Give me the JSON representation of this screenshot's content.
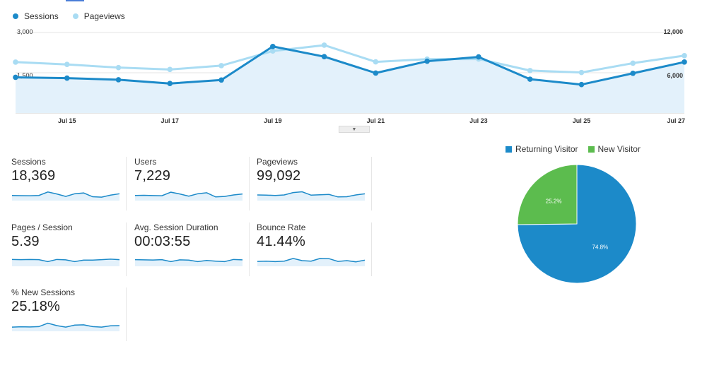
{
  "legend": {
    "sessions": {
      "label": "Sessions",
      "color": "#1c8ac9",
      "icon": "circle-marker-icon"
    },
    "pageviews": {
      "label": "Pageviews",
      "color": "#a9dcf3",
      "icon": "circle-marker-icon"
    }
  },
  "chart_data": [
    {
      "type": "line",
      "x": [
        "Jul 14",
        "Jul 15",
        "Jul 16",
        "Jul 17",
        "Jul 18",
        "Jul 19",
        "Jul 20",
        "Jul 21",
        "Jul 22",
        "Jul 23",
        "Jul 24",
        "Jul 25",
        "Jul 26",
        "Jul 27"
      ],
      "x_tick_labels": [
        "Jul 15",
        "Jul 17",
        "Jul 19",
        "Jul 21",
        "Jul 23",
        "Jul 25",
        "Jul 27"
      ],
      "series": [
        {
          "name": "Sessions",
          "axis": "left",
          "color": "#1c8ac9",
          "values": [
            1330,
            1300,
            1240,
            1100,
            1230,
            2480,
            2100,
            1490,
            1930,
            2090,
            1260,
            1060,
            1480,
            1900
          ]
        },
        {
          "name": "Pageviews",
          "axis": "right",
          "color": "#a9dcf3",
          "values": [
            7590,
            7240,
            6770,
            6490,
            7060,
            9240,
            10110,
            7620,
            8030,
            8050,
            6330,
            6040,
            7430,
            8550
          ]
        }
      ],
      "y_left": {
        "ticks": [
          "3,000",
          "1,500"
        ],
        "range": [
          0,
          3000
        ]
      },
      "y_right": {
        "ticks": [
          "12,000",
          "6,000"
        ],
        "range": [
          0,
          12000
        ]
      },
      "area_fill_color": "#e3f1fb"
    },
    {
      "type": "pie",
      "labels": [
        "Returning Visitor",
        "New Visitor"
      ],
      "values": [
        74.8,
        25.2
      ],
      "value_labels": [
        "74.8%",
        "25.2%"
      ],
      "colors": [
        "#1c8ac9",
        "#5cbc4e"
      ]
    }
  ],
  "metrics": [
    {
      "label": "Sessions",
      "value": "18,369",
      "spark": [
        0.45,
        0.43,
        0.42,
        0.45,
        0.8,
        0.6,
        0.35,
        0.62,
        0.7,
        0.32,
        0.28,
        0.48,
        0.62
      ]
    },
    {
      "label": "Users",
      "value": "7,229",
      "spark": [
        0.45,
        0.46,
        0.44,
        0.42,
        0.78,
        0.6,
        0.38,
        0.62,
        0.72,
        0.3,
        0.35,
        0.5,
        0.6
      ]
    },
    {
      "label": "Pageviews",
      "value": "99,092",
      "spark": [
        0.5,
        0.48,
        0.45,
        0.5,
        0.74,
        0.82,
        0.48,
        0.52,
        0.55,
        0.3,
        0.32,
        0.5,
        0.62
      ]
    },
    {
      "label": "Pages / Session",
      "value": "5.39",
      "spark": [
        0.62,
        0.6,
        0.62,
        0.6,
        0.4,
        0.62,
        0.58,
        0.4,
        0.55,
        0.55,
        0.6,
        0.65,
        0.6
      ]
    },
    {
      "label": "Avg. Session Duration",
      "value": "00:03:55",
      "spark": [
        0.6,
        0.58,
        0.56,
        0.6,
        0.4,
        0.58,
        0.55,
        0.4,
        0.52,
        0.45,
        0.4,
        0.62,
        0.58
      ]
    },
    {
      "label": "Bounce Rate",
      "value": "41.44%",
      "spark": [
        0.42,
        0.45,
        0.4,
        0.45,
        0.72,
        0.5,
        0.45,
        0.72,
        0.7,
        0.42,
        0.5,
        0.38,
        0.55
      ]
    },
    {
      "label": "% New Sessions",
      "value": "25.18%",
      "spark": [
        0.35,
        0.38,
        0.37,
        0.4,
        0.75,
        0.5,
        0.35,
        0.55,
        0.58,
        0.4,
        0.35,
        0.48,
        0.5
      ]
    }
  ],
  "colors": {
    "spark_line": "#1c8ac9",
    "spark_fill": "#e3f1fb"
  }
}
